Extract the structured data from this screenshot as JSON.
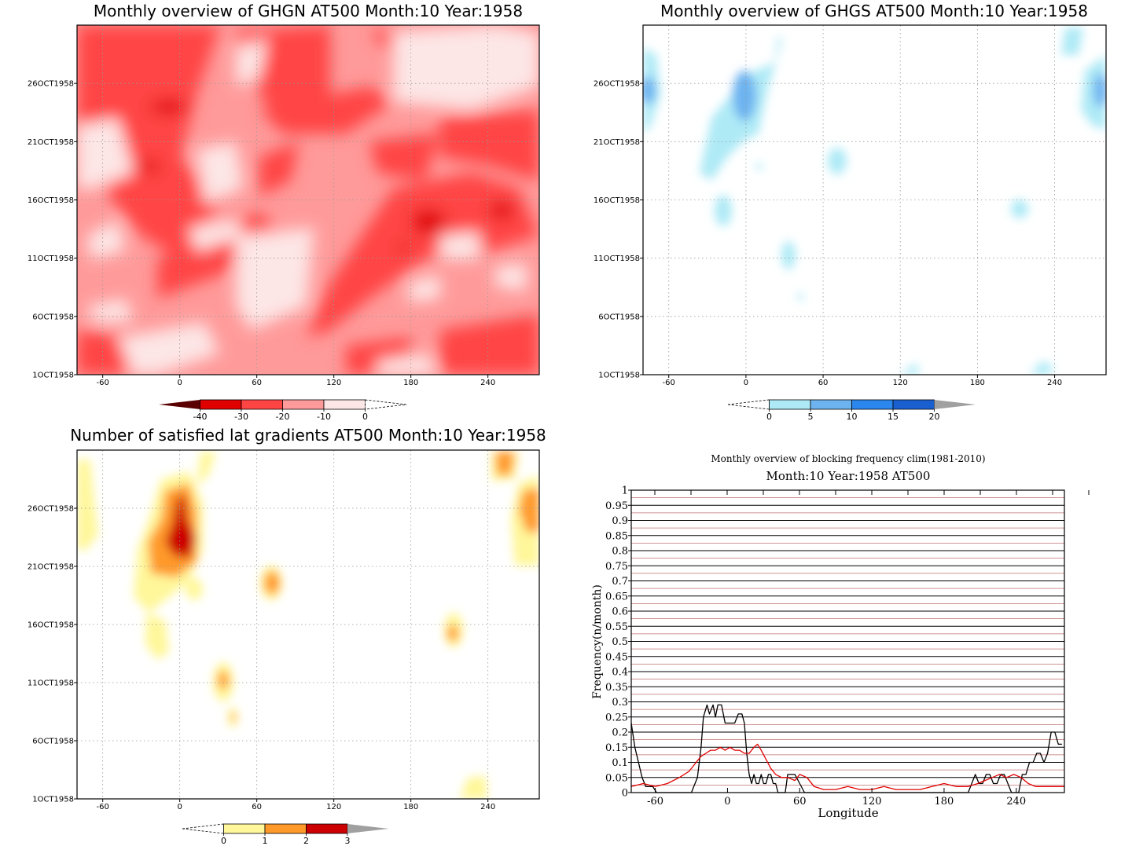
{
  "colors": {
    "red_scale": [
      "#5a0000",
      "#e00000",
      "#ff4444",
      "#ff9a9a",
      "#fde6e6",
      "#ffffff"
    ],
    "blue_scale": [
      "#ffffff",
      "#aeeaf6",
      "#6db3f0",
      "#2b87ee",
      "#1a5fd0",
      "#a0a0a0"
    ],
    "yellow_scale": [
      "#ffffff",
      "#fff79a",
      "#ff9a2a",
      "#cc0000",
      "#a0a0a0"
    ],
    "grid": "#9a9a9a",
    "black_series": "#000000",
    "red_series": "#e00000",
    "red_gridline": "#c07070"
  },
  "chart_data": [
    {
      "type": "heatmap",
      "title": "Monthly overview of GHGN AT500 Month:10 Year:1958",
      "x_ticks": [
        "-60",
        "0",
        "60",
        "120",
        "180",
        "240"
      ],
      "y_ticks": [
        "1OCT1958",
        "6OCT1958",
        "11OCT1958",
        "16OCT1958",
        "21OCT1958",
        "26OCT1958"
      ],
      "xlim": [
        -80,
        280
      ],
      "ylim": [
        1,
        31
      ],
      "colorbar": {
        "labels": [
          "-40",
          "-30",
          "-20",
          "-10",
          "0"
        ],
        "bins": [
          [
            -50,
            -40
          ],
          [
            -40,
            -30
          ],
          [
            -30,
            -20
          ],
          [
            -20,
            -10
          ],
          [
            -10,
            0
          ],
          [
            0,
            10
          ]
        ]
      }
    },
    {
      "type": "heatmap",
      "title": "Monthly overview of GHGS AT500 Month:10 Year:1958",
      "x_ticks": [
        "-60",
        "0",
        "60",
        "120",
        "180",
        "240"
      ],
      "y_ticks": [
        "1OCT1958",
        "6OCT1958",
        "11OCT1958",
        "16OCT1958",
        "21OCT1958",
        "26OCT1958"
      ],
      "xlim": [
        -80,
        280
      ],
      "ylim": [
        1,
        31
      ],
      "colorbar": {
        "labels": [
          "0",
          "5",
          "10",
          "15",
          "20"
        ],
        "bins": [
          [
            -5,
            0
          ],
          [
            0,
            5
          ],
          [
            5,
            10
          ],
          [
            10,
            15
          ],
          [
            15,
            20
          ],
          [
            20,
            25
          ]
        ]
      }
    },
    {
      "type": "heatmap",
      "title": "Number of satisfied lat gradients AT500 Month:10 Year:1958",
      "x_ticks": [
        "-60",
        "0",
        "60",
        "120",
        "180",
        "240"
      ],
      "y_ticks": [
        "1OCT1958",
        "6OCT1958",
        "11OCT1958",
        "16OCT1958",
        "21OCT1958",
        "26OCT1958"
      ],
      "xlim": [
        -80,
        280
      ],
      "ylim": [
        1,
        31
      ],
      "colorbar": {
        "labels": [
          "0",
          "1",
          "2",
          "3"
        ],
        "bins": [
          [
            -1,
            0
          ],
          [
            0,
            1
          ],
          [
            1,
            2
          ],
          [
            2,
            3
          ],
          [
            3,
            4
          ]
        ]
      }
    },
    {
      "type": "line",
      "title": "Monthly overview of blocking frequency clim(1981-2010)",
      "subtitle": "Month:10 Year:1958  AT500",
      "xlabel": "Longitude",
      "ylabel": "Frequency(n/month)",
      "xlim": [
        -80,
        280
      ],
      "ylim": [
        0,
        1
      ],
      "x_ticks": [
        "-60",
        "0",
        "60",
        "120",
        "180",
        "240"
      ],
      "y_ticks": [
        "0",
        "0.05",
        "0.1",
        "0.15",
        "0.2",
        "0.25",
        "0.3",
        "0.35",
        "0.4",
        "0.45",
        "0.5",
        "0.55",
        "0.6",
        "0.65",
        "0.7",
        "0.75",
        "0.8",
        "0.85",
        "0.9",
        "0.95",
        "1"
      ],
      "series": [
        {
          "color": "#000000",
          "x": [
            -80,
            -77,
            -74,
            -71,
            -68,
            -65,
            -62,
            -59,
            -56,
            -50,
            -40,
            -30,
            -25,
            -22,
            -20,
            -17,
            -15,
            -12,
            -10,
            -8,
            -5,
            -2,
            0,
            3,
            6,
            9,
            12,
            14,
            16,
            18,
            20,
            22,
            24,
            26,
            28,
            30,
            32,
            34,
            36,
            38,
            40,
            42,
            44,
            46,
            48,
            50,
            52,
            56,
            60,
            64,
            70,
            80,
            100,
            120,
            140,
            160,
            180,
            195,
            200,
            203,
            206,
            209,
            212,
            215,
            218,
            221,
            224,
            227,
            230,
            233,
            236,
            239,
            242,
            245,
            248,
            251,
            254,
            257,
            260,
            263,
            266,
            269,
            272,
            275,
            278
          ],
          "y": [
            0.23,
            0.15,
            0.1,
            0.05,
            0.02,
            0.02,
            0.02,
            0.0,
            0.0,
            0.0,
            0.0,
            0.0,
            0.05,
            0.15,
            0.25,
            0.29,
            0.26,
            0.29,
            0.25,
            0.29,
            0.29,
            0.23,
            0.23,
            0.23,
            0.23,
            0.26,
            0.26,
            0.23,
            0.13,
            0.06,
            0.03,
            0.06,
            0.03,
            0.03,
            0.06,
            0.03,
            0.03,
            0.06,
            0.06,
            0.03,
            0.03,
            0.0,
            0.0,
            0.0,
            0.0,
            0.06,
            0.06,
            0.06,
            0.03,
            0.0,
            0.0,
            0.0,
            0.0,
            0.0,
            0.0,
            0.0,
            0.0,
            0.0,
            0.0,
            0.03,
            0.06,
            0.03,
            0.03,
            0.06,
            0.06,
            0.03,
            0.03,
            0.06,
            0.06,
            0.03,
            0.0,
            0.0,
            0.0,
            0.06,
            0.06,
            0.1,
            0.1,
            0.13,
            0.13,
            0.1,
            0.13,
            0.2,
            0.2,
            0.16,
            0.16
          ]
        },
        {
          "color": "#e00000",
          "x": [
            -80,
            -70,
            -60,
            -50,
            -40,
            -32,
            -26,
            -22,
            -18,
            -14,
            -10,
            -6,
            -2,
            2,
            6,
            10,
            14,
            18,
            22,
            25,
            28,
            32,
            36,
            40,
            45,
            50,
            56,
            60,
            66,
            72,
            80,
            90,
            100,
            110,
            120,
            130,
            140,
            150,
            160,
            170,
            180,
            190,
            200,
            208,
            214,
            220,
            226,
            232,
            238,
            244,
            250,
            256,
            262,
            268,
            275,
            280
          ],
          "y": [
            0.02,
            0.03,
            0.02,
            0.03,
            0.05,
            0.07,
            0.1,
            0.12,
            0.13,
            0.14,
            0.14,
            0.15,
            0.14,
            0.15,
            0.14,
            0.14,
            0.13,
            0.13,
            0.15,
            0.16,
            0.14,
            0.11,
            0.08,
            0.06,
            0.05,
            0.05,
            0.04,
            0.06,
            0.05,
            0.02,
            0.01,
            0.01,
            0.02,
            0.01,
            0.01,
            0.02,
            0.01,
            0.01,
            0.01,
            0.02,
            0.03,
            0.02,
            0.02,
            0.03,
            0.04,
            0.05,
            0.06,
            0.05,
            0.06,
            0.05,
            0.03,
            0.02,
            0.02,
            0.02,
            0.02,
            0.02
          ]
        }
      ]
    }
  ]
}
